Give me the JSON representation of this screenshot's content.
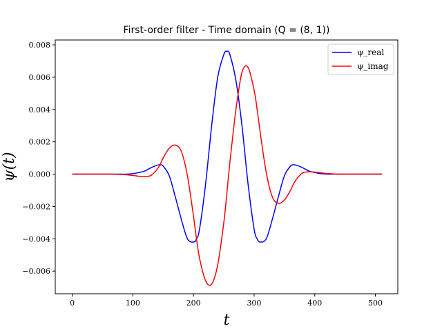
{
  "chart_data": {
    "type": "line",
    "title": "First-order filter - Time domain (Q = (8, 1))",
    "xlabel": "t",
    "ylabel": "ψ(t)",
    "xlim": [
      -28,
      537
    ],
    "ylim": [
      -0.0074,
      0.0083
    ],
    "xticks": [
      0,
      100,
      200,
      300,
      400,
      500
    ],
    "xtick_labels": [
      "0",
      "100",
      "200",
      "300",
      "400",
      "500"
    ],
    "yticks": [
      -0.006,
      -0.004,
      -0.002,
      0.0,
      0.002,
      0.004,
      0.006,
      0.008
    ],
    "ytick_labels": [
      "−0.006",
      "−0.004",
      "−0.002",
      "0.000",
      "0.002",
      "0.004",
      "0.006",
      "0.008"
    ],
    "grid": false,
    "legend_position": "top-right",
    "x": [
      0,
      60,
      80,
      90,
      100,
      110,
      120,
      130,
      140,
      145,
      150,
      160,
      170,
      180,
      190,
      200,
      205,
      210,
      220,
      230,
      240,
      250,
      255,
      260,
      270,
      280,
      290,
      300,
      305,
      310,
      320,
      330,
      340,
      350,
      360,
      365,
      370,
      380,
      390,
      400,
      410,
      420,
      430,
      440,
      460,
      480,
      511
    ],
    "series": [
      {
        "name": "ψ_real",
        "color": "#0000ff",
        "values": [
          0.0,
          0.0,
          0.0,
          0.0,
          3e-05,
          0.0001,
          0.0002,
          0.0004,
          0.00055,
          0.00058,
          0.0005,
          -0.0001,
          -0.0014,
          -0.0028,
          -0.004,
          -0.0042,
          -0.004,
          -0.0034,
          -0.0006,
          0.003,
          0.006,
          0.0074,
          0.0076,
          0.0074,
          0.0058,
          0.003,
          -0.0006,
          -0.0034,
          -0.004,
          -0.0042,
          -0.004,
          -0.0028,
          -0.0014,
          -0.0001,
          0.0005,
          0.00058,
          0.00055,
          0.0004,
          0.0002,
          0.0001,
          3e-05,
          0.0,
          0.0,
          0.0,
          0.0,
          0.0,
          0.0
        ]
      },
      {
        "name": "ψ_imag",
        "color": "#ff0000",
        "values": [
          0.0,
          0.0,
          -2e-05,
          -4e-05,
          -8e-05,
          -0.00013,
          -0.00014,
          -8e-05,
          0.0003,
          0.0006,
          0.001,
          0.0016,
          0.0018,
          0.0014,
          -0.0001,
          -0.0026,
          -0.004,
          -0.0052,
          -0.0066,
          -0.0068,
          -0.0056,
          -0.003,
          -0.0012,
          0.0007,
          0.004,
          0.0063,
          0.0066,
          0.0052,
          0.004,
          0.0026,
          0.0001,
          -0.0014,
          -0.0018,
          -0.0016,
          -0.001,
          -0.0006,
          -0.0003,
          8e-05,
          0.00014,
          0.00013,
          8e-05,
          4e-05,
          2e-05,
          0.0,
          0.0,
          0.0,
          0.0
        ]
      }
    ]
  }
}
